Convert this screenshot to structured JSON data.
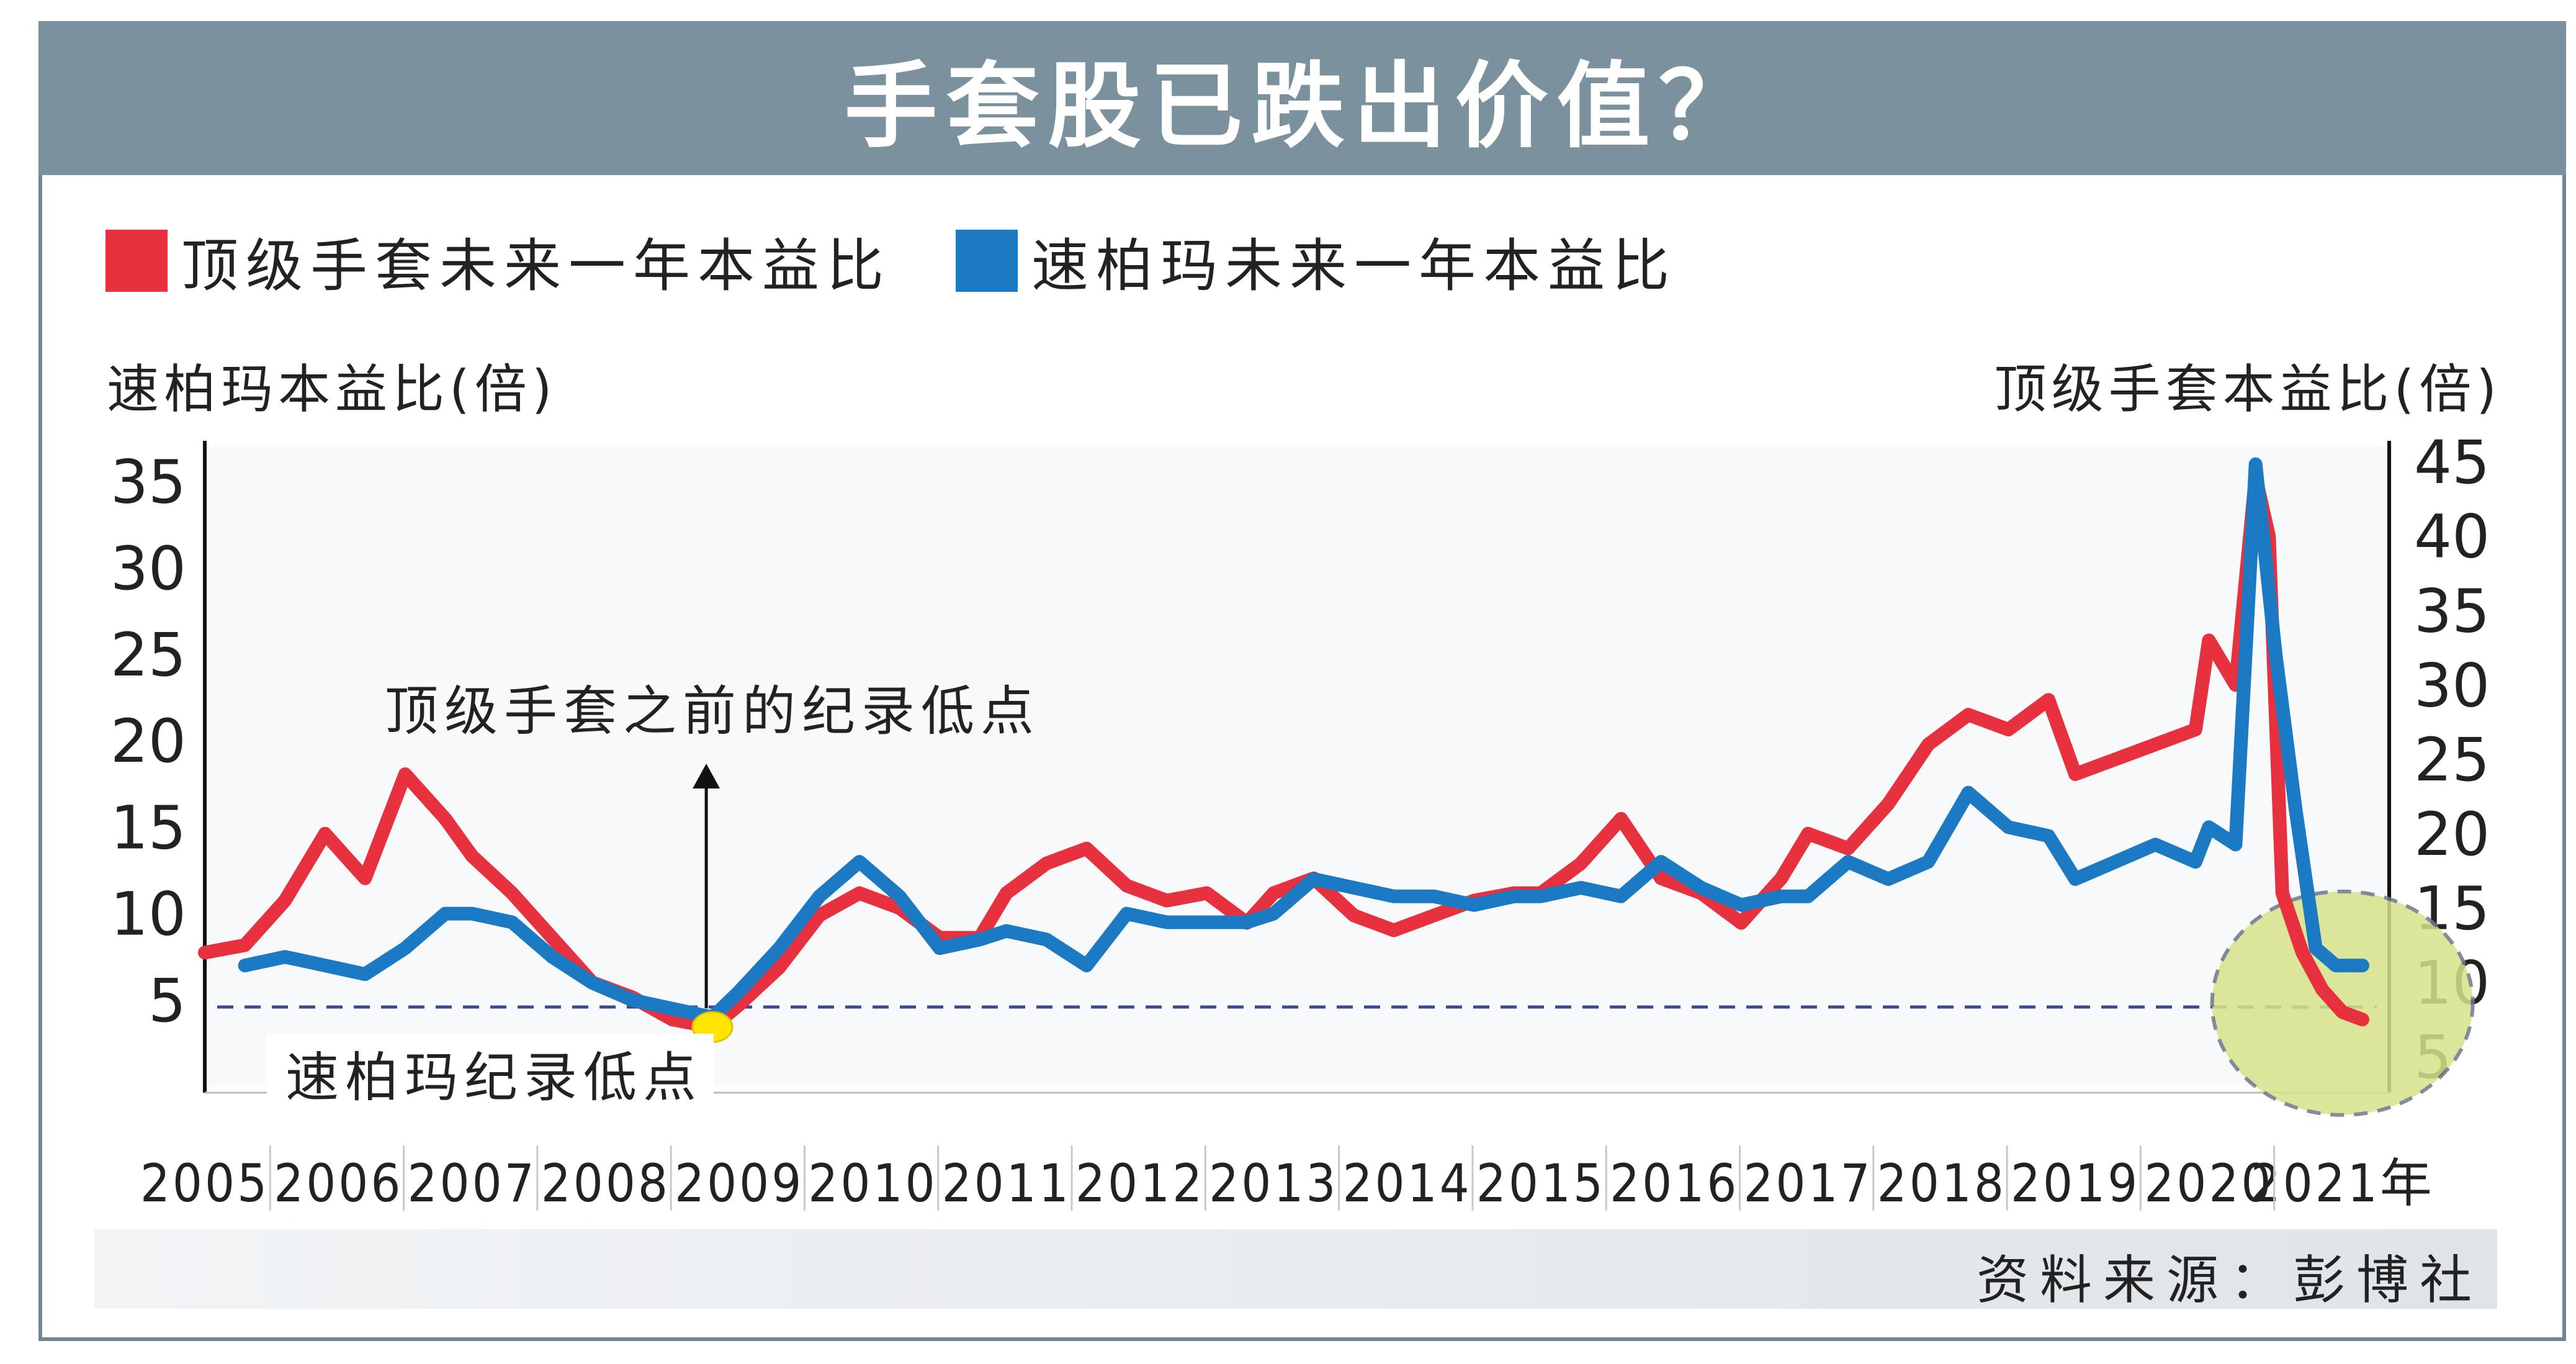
{
  "title": "手套股已跌出价值？",
  "legend": [
    {
      "label": "顶级手套未来一年本益比",
      "color": "#e8313f"
    },
    {
      "label": "速柏玛未来一年本益比",
      "color": "#1b7ac3"
    }
  ],
  "left_axis_title": "速柏玛本益比(倍)",
  "right_axis_title": "顶级手套本益比(倍)",
  "annotations": {
    "top_glove_low": "顶级手套之前的纪录低点",
    "supermax_low": "速柏玛纪录低点"
  },
  "source": "资料来源：彭博社",
  "chart_data": {
    "type": "line",
    "x_ticks": [
      "2005",
      "2006",
      "2007",
      "2008",
      "2009",
      "2010",
      "2011",
      "2012",
      "2013",
      "2014",
      "2015",
      "2016",
      "2017",
      "2018",
      "2019",
      "2020",
      "2021年"
    ],
    "left_axis": {
      "ticks": [
        5,
        10,
        15,
        20,
        25,
        30,
        35
      ],
      "range": [
        0,
        37
      ]
    },
    "right_axis": {
      "ticks": [
        5,
        10,
        15,
        20,
        25,
        30,
        35,
        40,
        45
      ],
      "range": [
        3,
        46
      ]
    },
    "reference_line_left_value": 4.6,
    "series": [
      {
        "name": "顶级手套未来一年本益比",
        "axis": "right",
        "color": "#e8313f",
        "x": [
          2005.0,
          2005.3,
          2005.6,
          2005.9,
          2006.2,
          2006.5,
          2006.8,
          2007.0,
          2007.3,
          2007.6,
          2007.9,
          2008.2,
          2008.5,
          2008.8,
          2009.0,
          2009.3,
          2009.6,
          2009.9,
          2010.2,
          2010.5,
          2010.8,
          2011.0,
          2011.3,
          2011.6,
          2011.9,
          2012.2,
          2012.5,
          2012.8,
          2013.0,
          2013.3,
          2013.6,
          2013.9,
          2014.2,
          2014.5,
          2014.8,
          2015.0,
          2015.3,
          2015.6,
          2015.9,
          2016.2,
          2016.5,
          2016.8,
          2017.0,
          2017.3,
          2017.6,
          2017.9,
          2018.2,
          2018.5,
          2018.8,
          2019.0,
          2019.3,
          2019.6,
          2019.9,
          2020.0,
          2020.2,
          2020.35,
          2020.45,
          2020.55,
          2020.7,
          2020.85,
          2021.0,
          2021.15
        ],
        "values": [
          12,
          12.5,
          15.5,
          20,
          17,
          24,
          21,
          18.5,
          16,
          13,
          10,
          9,
          7.5,
          7,
          8.5,
          11,
          14.5,
          16,
          15,
          13,
          13,
          16,
          18,
          19,
          16.5,
          15.5,
          16,
          14,
          16,
          17,
          14.5,
          13.5,
          14.5,
          15.5,
          16,
          16,
          18,
          21,
          17,
          16,
          14,
          17,
          20,
          19,
          22,
          26,
          28,
          27,
          29,
          24,
          25,
          26,
          27,
          33,
          30,
          44,
          40,
          16,
          12,
          9.5,
          8,
          7.5
        ]
      },
      {
        "name": "速柏玛未来一年本益比",
        "axis": "left",
        "color": "#1b7ac3",
        "x": [
          2005.3,
          2005.6,
          2005.9,
          2006.2,
          2006.5,
          2006.8,
          2007.0,
          2007.3,
          2007.6,
          2007.9,
          2008.2,
          2008.5,
          2008.8,
          2009.0,
          2009.3,
          2009.6,
          2009.9,
          2010.2,
          2010.5,
          2010.8,
          2011.0,
          2011.3,
          2011.6,
          2011.9,
          2012.2,
          2012.5,
          2012.8,
          2013.0,
          2013.3,
          2013.6,
          2013.9,
          2014.2,
          2014.5,
          2014.8,
          2015.0,
          2015.3,
          2015.6,
          2015.9,
          2016.2,
          2016.5,
          2016.8,
          2017.0,
          2017.3,
          2017.6,
          2017.9,
          2018.2,
          2018.5,
          2018.8,
          2019.0,
          2019.3,
          2019.6,
          2019.9,
          2020.0,
          2020.2,
          2020.35,
          2020.5,
          2020.65,
          2020.8,
          2020.95,
          2021.15
        ],
        "values": [
          7,
          7.5,
          7,
          6.5,
          8,
          10,
          10,
          9.5,
          7.5,
          6,
          5,
          4.5,
          4,
          5.5,
          8,
          11,
          13,
          11,
          8,
          8.5,
          9,
          8.5,
          7,
          10,
          9.5,
          9.5,
          9.5,
          10,
          12,
          11.5,
          11,
          11,
          10.5,
          11,
          11,
          11.5,
          11,
          13,
          11.5,
          10.5,
          11,
          11,
          13,
          12,
          13,
          17,
          15,
          14.5,
          12,
          13,
          14,
          13,
          15,
          14,
          36,
          25,
          16,
          8,
          7,
          7
        ]
      }
    ]
  }
}
